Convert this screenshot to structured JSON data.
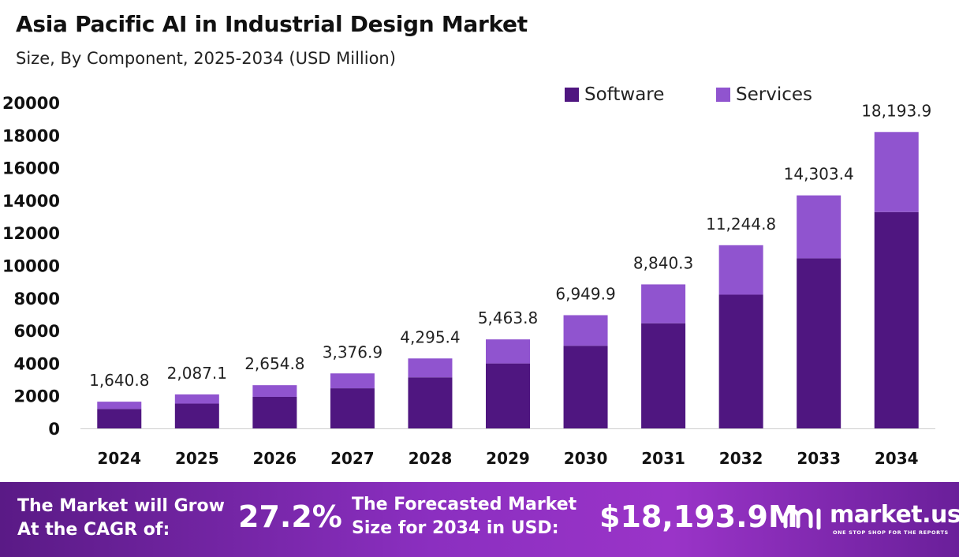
{
  "chart_data": {
    "type": "bar",
    "stacked": true,
    "title": "Asia Pacific AI in Industrial Design Market",
    "subtitle": "Size, By Component, 2025-2034 (USD Million)",
    "categories": [
      "2024",
      "2025",
      "2026",
      "2027",
      "2028",
      "2029",
      "2030",
      "2031",
      "2032",
      "2033",
      "2034"
    ],
    "series": [
      {
        "name": "Software",
        "color": "#4f1680",
        "values": [
          1198,
          1524,
          1938,
          2465,
          3136,
          3989,
          5073,
          6453,
          8209,
          10441,
          13281
        ]
      },
      {
        "name": "Services",
        "color": "#9054cf",
        "values": [
          442.8,
          563.1,
          716.8,
          911.9,
          1159.4,
          1474.8,
          1876.9,
          2387.3,
          3035.8,
          3862.4,
          4912.9
        ]
      }
    ],
    "totals_labels": [
      "1,640.8",
      "2,087.1",
      "2,654.8",
      "3,376.9",
      "4,295.4",
      "5,463.8",
      "6,949.9",
      "8,840.3",
      "11,244.8",
      "14,303.4",
      "18,193.9"
    ],
    "ylim": [
      0,
      20000
    ],
    "yticks": [
      "0",
      "2000",
      "4000",
      "6000",
      "8000",
      "10000",
      "12000",
      "14000",
      "16000",
      "18000",
      "20000"
    ],
    "xlabel": "",
    "ylabel": "",
    "grid": false,
    "legend": "top-right"
  },
  "footer": {
    "cagr_text": [
      "The Market will Grow",
      "At the CAGR of:"
    ],
    "cagr_value": "27.2%",
    "forecast_text": [
      "The Forecasted Market",
      "Size for 2034 in USD:"
    ],
    "forecast_value": "$18,193.9M",
    "brand": "market.us",
    "brand_tagline": "ONE STOP SHOP FOR THE REPORTS",
    "logo_icon": "market-us-logo-icon"
  }
}
